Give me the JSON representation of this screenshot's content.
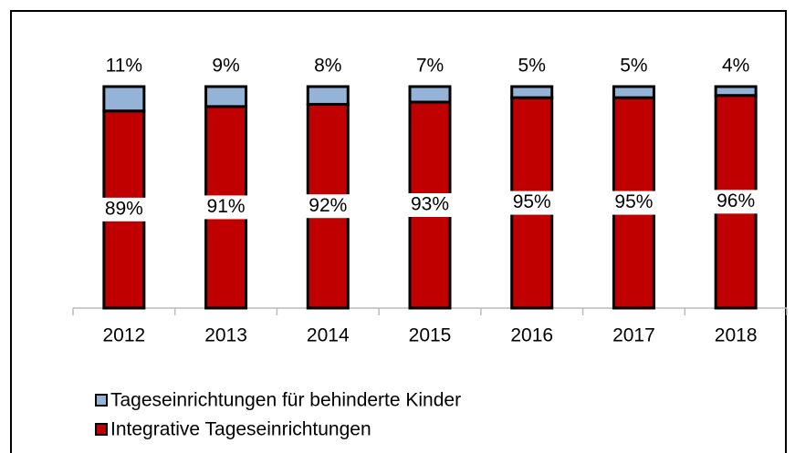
{
  "chart_data": {
    "type": "stacked_bar",
    "categories": [
      "2012",
      "2013",
      "2014",
      "2015",
      "2016",
      "2017",
      "2018"
    ],
    "series": [
      {
        "name": "Integrative Tageseinrichtungen",
        "color": "#c00000",
        "values": [
          89,
          91,
          92,
          93,
          95,
          95,
          96
        ],
        "value_labels": [
          "89%",
          "91%",
          "92%",
          "93%",
          "95%",
          "95%",
          "96%"
        ]
      },
      {
        "name": "Tageseinrichtungen für behinderte Kinder",
        "color": "#95b3d7",
        "values": [
          11,
          9,
          8,
          7,
          5,
          5,
          4
        ],
        "value_labels": [
          "11%",
          "9%",
          "8%",
          "7%",
          "5%",
          "5%",
          "4%"
        ]
      }
    ]
  }
}
